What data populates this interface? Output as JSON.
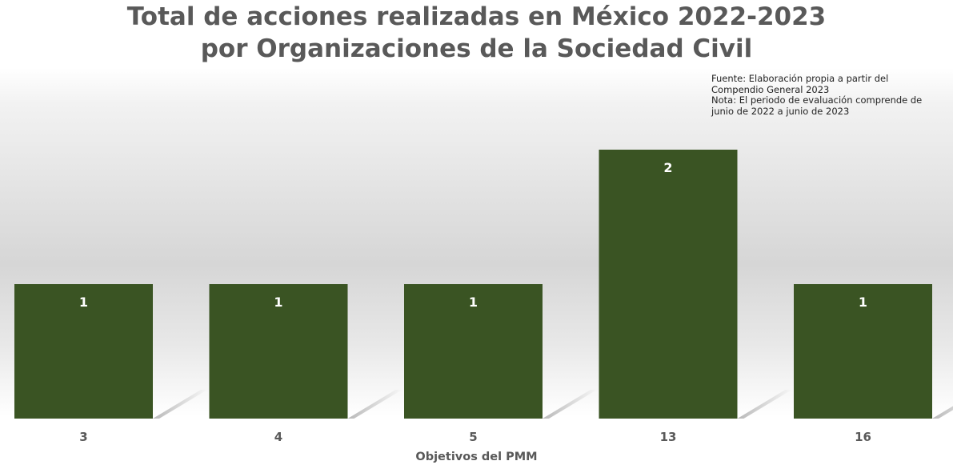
{
  "chart_data": {
    "type": "bar",
    "title_lines": [
      "Total de acciones realizadas en México 2022-2023",
      "por Organizaciones de la Sociedad Civil"
    ],
    "categories": [
      "3",
      "4",
      "5",
      "13",
      "16"
    ],
    "values": [
      1,
      1,
      1,
      2,
      1
    ],
    "xlabel": "Objetivos del PMM",
    "ylabel": "",
    "ylim": [
      0,
      2
    ],
    "grid": false,
    "legend": "none",
    "data_labels": true,
    "note_lines": [
      "Fuente: Elaboración propia a partir del",
      "Compendio General 2023",
      "Nota: El periodo de evaluación comprende de",
      "junio de 2022 a junio de 2023"
    ],
    "colors": {
      "bar": "#3a5423",
      "title": "#595959",
      "label": "#ffffff"
    }
  }
}
